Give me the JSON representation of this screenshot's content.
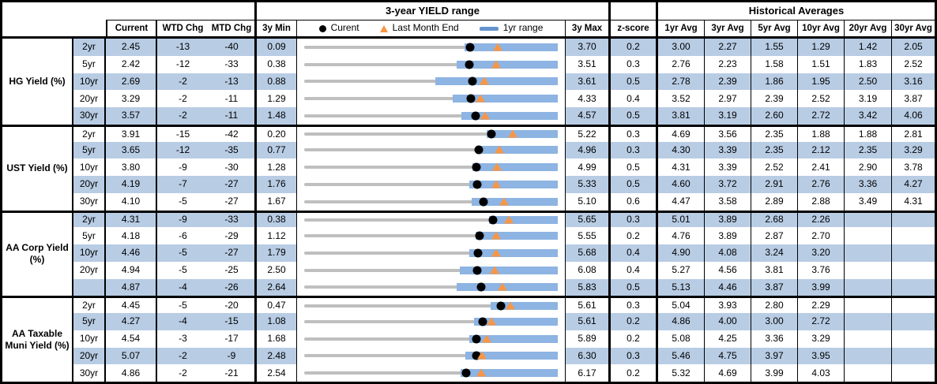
{
  "labels": {
    "yield_range_title": "3-year YIELD range",
    "historical_title": "Historical Averages",
    "current": "Current",
    "wtd": "WTD Chg",
    "mtd": "MTD Chg",
    "min3y": "3y Min",
    "max3y": "3y Max",
    "zscore": "z-score",
    "avg_headers": [
      "1yr Avg",
      "3yr Avg",
      "5yr Avg",
      "10yr Avg",
      "20yr Avg",
      "30yr Avg"
    ],
    "legend_current": "Curent",
    "legend_lme": "Last Month End",
    "legend_1yr": "1yr range"
  },
  "colors": {
    "stripe": "#b8cce4",
    "bar": "#8db4e2",
    "legendbar": "#6593cf",
    "track": "#bfbfbf",
    "orange": "#f79646",
    "dot": "#000000"
  },
  "chart_data": {
    "type": "table",
    "embedded_chart": {
      "type": "range",
      "title": "3-year YIELD range",
      "track": "3y Min to 3y Max",
      "bar": "1yr range (bar high = 3y Max on every row)",
      "dot_marker": "Curent (current yield)",
      "triangle_marker": "Last Month End (current minus MTD change in bp)"
    },
    "columns": [
      "Current",
      "WTD Chg",
      "MTD Chg",
      "3y Min",
      "3y Max",
      "z-score",
      "1yr Avg",
      "3yr Avg",
      "5yr Avg",
      "10yr Avg",
      "20yr Avg",
      "30yr Avg"
    ],
    "groups": [
      {
        "key": "hg",
        "label": "HG Yield (%)",
        "rows": [
          {
            "tenor": "2yr",
            "current": "2.45",
            "wtd": "-13",
            "mtd": "-40",
            "min3y": "0.09",
            "bar1yr_lo": "2.37",
            "max3y": "3.70",
            "z": "0.2",
            "avgs": [
              "3.00",
              "2.27",
              "1.55",
              "1.29",
              "1.42",
              "2.05"
            ]
          },
          {
            "tenor": "5yr",
            "current": "2.42",
            "wtd": "-12",
            "mtd": "-33",
            "min3y": "0.38",
            "bar1yr_lo": "2.26",
            "max3y": "3.51",
            "z": "0.3",
            "avgs": [
              "2.76",
              "2.23",
              "1.58",
              "1.51",
              "1.83",
              "2.52"
            ]
          },
          {
            "tenor": "10yr",
            "current": "2.69",
            "wtd": "-2",
            "mtd": "-13",
            "min3y": "0.88",
            "bar1yr_lo": "2.29",
            "max3y": "3.61",
            "z": "0.5",
            "avgs": [
              "2.78",
              "2.39",
              "1.86",
              "1.95",
              "2.50",
              "3.16"
            ]
          },
          {
            "tenor": "20yr",
            "current": "3.29",
            "wtd": "-2",
            "mtd": "-11",
            "min3y": "1.29",
            "bar1yr_lo": "3.07",
            "max3y": "4.33",
            "z": "0.4",
            "avgs": [
              "3.52",
              "2.97",
              "2.39",
              "2.52",
              "3.19",
              "3.87"
            ]
          },
          {
            "tenor": "30yr",
            "current": "3.57",
            "wtd": "-2",
            "mtd": "-11",
            "min3y": "1.48",
            "bar1yr_lo": "3.40",
            "max3y": "4.57",
            "z": "0.5",
            "avgs": [
              "3.81",
              "3.19",
              "2.60",
              "2.72",
              "3.42",
              "4.06"
            ]
          }
        ]
      },
      {
        "key": "ust",
        "label": "UST Yield (%)",
        "rows": [
          {
            "tenor": "2yr",
            "current": "3.91",
            "wtd": "-15",
            "mtd": "-42",
            "min3y": "0.20",
            "bar1yr_lo": "3.81",
            "max3y": "5.22",
            "z": "0.3",
            "avgs": [
              "4.69",
              "3.56",
              "2.35",
              "1.88",
              "1.88",
              "2.81"
            ]
          },
          {
            "tenor": "5yr",
            "current": "3.65",
            "wtd": "-12",
            "mtd": "-35",
            "min3y": "0.77",
            "bar1yr_lo": "3.61",
            "max3y": "4.96",
            "z": "0.3",
            "avgs": [
              "4.30",
              "3.39",
              "2.35",
              "2.12",
              "2.35",
              "3.29"
            ]
          },
          {
            "tenor": "10yr",
            "current": "3.80",
            "wtd": "-9",
            "mtd": "-30",
            "min3y": "1.28",
            "bar1yr_lo": "3.74",
            "max3y": "4.99",
            "z": "0.5",
            "avgs": [
              "4.31",
              "3.39",
              "2.52",
              "2.41",
              "2.90",
              "3.78"
            ]
          },
          {
            "tenor": "20yr",
            "current": "4.19",
            "wtd": "-7",
            "mtd": "-27",
            "min3y": "1.76",
            "bar1yr_lo": "4.08",
            "max3y": "5.33",
            "z": "0.5",
            "avgs": [
              "4.60",
              "3.72",
              "2.91",
              "2.76",
              "3.36",
              "4.27"
            ]
          },
          {
            "tenor": "30yr",
            "current": "4.10",
            "wtd": "-5",
            "mtd": "-27",
            "min3y": "1.67",
            "bar1yr_lo": "3.94",
            "max3y": "5.10",
            "z": "0.6",
            "avgs": [
              "4.47",
              "3.58",
              "2.89",
              "2.88",
              "3.49",
              "4.31"
            ]
          }
        ]
      },
      {
        "key": "aa-corp",
        "label": "AA Corp Yield (%)",
        "rows": [
          {
            "tenor": "2yr",
            "current": "4.31",
            "wtd": "-9",
            "mtd": "-33",
            "min3y": "0.38",
            "bar1yr_lo": "4.22",
            "max3y": "5.65",
            "z": "0.3",
            "avgs": [
              "5.01",
              "3.89",
              "2.68",
              "2.26",
              "",
              ""
            ]
          },
          {
            "tenor": "5yr",
            "current": "4.18",
            "wtd": "-6",
            "mtd": "-29",
            "min3y": "1.12",
            "bar1yr_lo": "4.11",
            "max3y": "5.55",
            "z": "0.2",
            "avgs": [
              "4.76",
              "3.89",
              "2.87",
              "2.70",
              "",
              ""
            ]
          },
          {
            "tenor": "10yr",
            "current": "4.46",
            "wtd": "-5",
            "mtd": "-27",
            "min3y": "1.79",
            "bar1yr_lo": "4.32",
            "max3y": "5.68",
            "z": "0.4",
            "avgs": [
              "4.90",
              "4.08",
              "3.24",
              "3.20",
              "",
              ""
            ]
          },
          {
            "tenor": "20yr",
            "current": "4.94",
            "wtd": "-5",
            "mtd": "-25",
            "min3y": "2.50",
            "bar1yr_lo": "4.70",
            "max3y": "6.08",
            "z": "0.4",
            "avgs": [
              "5.27",
              "4.56",
              "3.81",
              "3.76",
              "",
              ""
            ]
          },
          {
            "tenor": "",
            "current": "4.87",
            "wtd": "-4",
            "mtd": "-26",
            "min3y": "2.64",
            "bar1yr_lo": "4.56",
            "max3y": "5.83",
            "z": "0.5",
            "avgs": [
              "5.13",
              "4.46",
              "3.87",
              "3.99",
              "",
              ""
            ]
          }
        ]
      },
      {
        "key": "aa-muni",
        "label": "AA Taxable Muni Yield (%)",
        "rows": [
          {
            "tenor": "2yr",
            "current": "4.45",
            "wtd": "-5",
            "mtd": "-20",
            "min3y": "0.47",
            "bar1yr_lo": "4.25",
            "max3y": "5.61",
            "z": "0.3",
            "avgs": [
              "5.04",
              "3.93",
              "2.80",
              "2.29",
              "",
              ""
            ]
          },
          {
            "tenor": "5yr",
            "current": "4.27",
            "wtd": "-4",
            "mtd": "-15",
            "min3y": "1.08",
            "bar1yr_lo": "4.11",
            "max3y": "5.61",
            "z": "0.2",
            "avgs": [
              "4.86",
              "4.00",
              "3.00",
              "2.72",
              "",
              ""
            ]
          },
          {
            "tenor": "10yr",
            "current": "4.54",
            "wtd": "-3",
            "mtd": "-17",
            "min3y": "1.68",
            "bar1yr_lo": "4.42",
            "max3y": "5.89",
            "z": "0.2",
            "avgs": [
              "5.08",
              "4.25",
              "3.36",
              "3.29",
              "",
              ""
            ]
          },
          {
            "tenor": "20yr",
            "current": "5.07",
            "wtd": "-2",
            "mtd": "-9",
            "min3y": "2.48",
            "bar1yr_lo": "4.91",
            "max3y": "6.30",
            "z": "0.3",
            "avgs": [
              "5.46",
              "4.75",
              "3.97",
              "3.95",
              "",
              ""
            ]
          },
          {
            "tenor": "30yr",
            "current": "4.86",
            "wtd": "-2",
            "mtd": "-21",
            "min3y": "2.54",
            "bar1yr_lo": "4.78",
            "max3y": "6.17",
            "z": "0.2",
            "avgs": [
              "5.32",
              "4.69",
              "3.99",
              "4.03",
              "",
              ""
            ]
          }
        ]
      }
    ]
  }
}
